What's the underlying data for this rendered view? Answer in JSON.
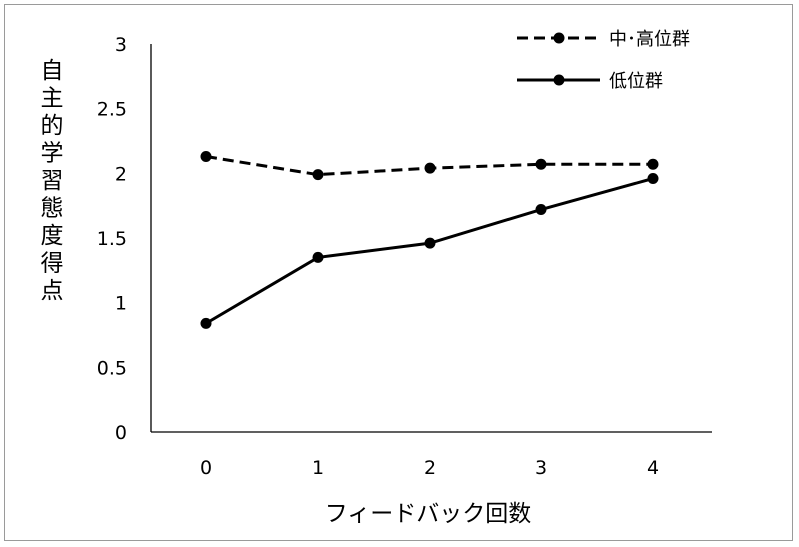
{
  "chart_data": {
    "type": "line",
    "title": "",
    "xlabel": "フィードバック回数",
    "ylabel": "自主的学習態度得点",
    "categories": [
      "0",
      "1",
      "2",
      "3",
      "4"
    ],
    "x": [
      0,
      1,
      2,
      3,
      4
    ],
    "ylim": [
      0,
      3
    ],
    "yticks": [
      "0",
      "0.5",
      "1",
      "1.5",
      "2",
      "2.5",
      "3"
    ],
    "grid": false,
    "legend_position": "top-right",
    "series": [
      {
        "name": "中･高位群",
        "line_style": "dashed",
        "marker": "circle",
        "color": "#000000",
        "values": [
          2.13,
          1.99,
          2.04,
          2.07,
          2.07
        ]
      },
      {
        "name": "低位群",
        "line_style": "solid",
        "marker": "circle",
        "color": "#000000",
        "values": [
          0.84,
          1.35,
          1.46,
          1.72,
          1.96
        ]
      }
    ]
  }
}
